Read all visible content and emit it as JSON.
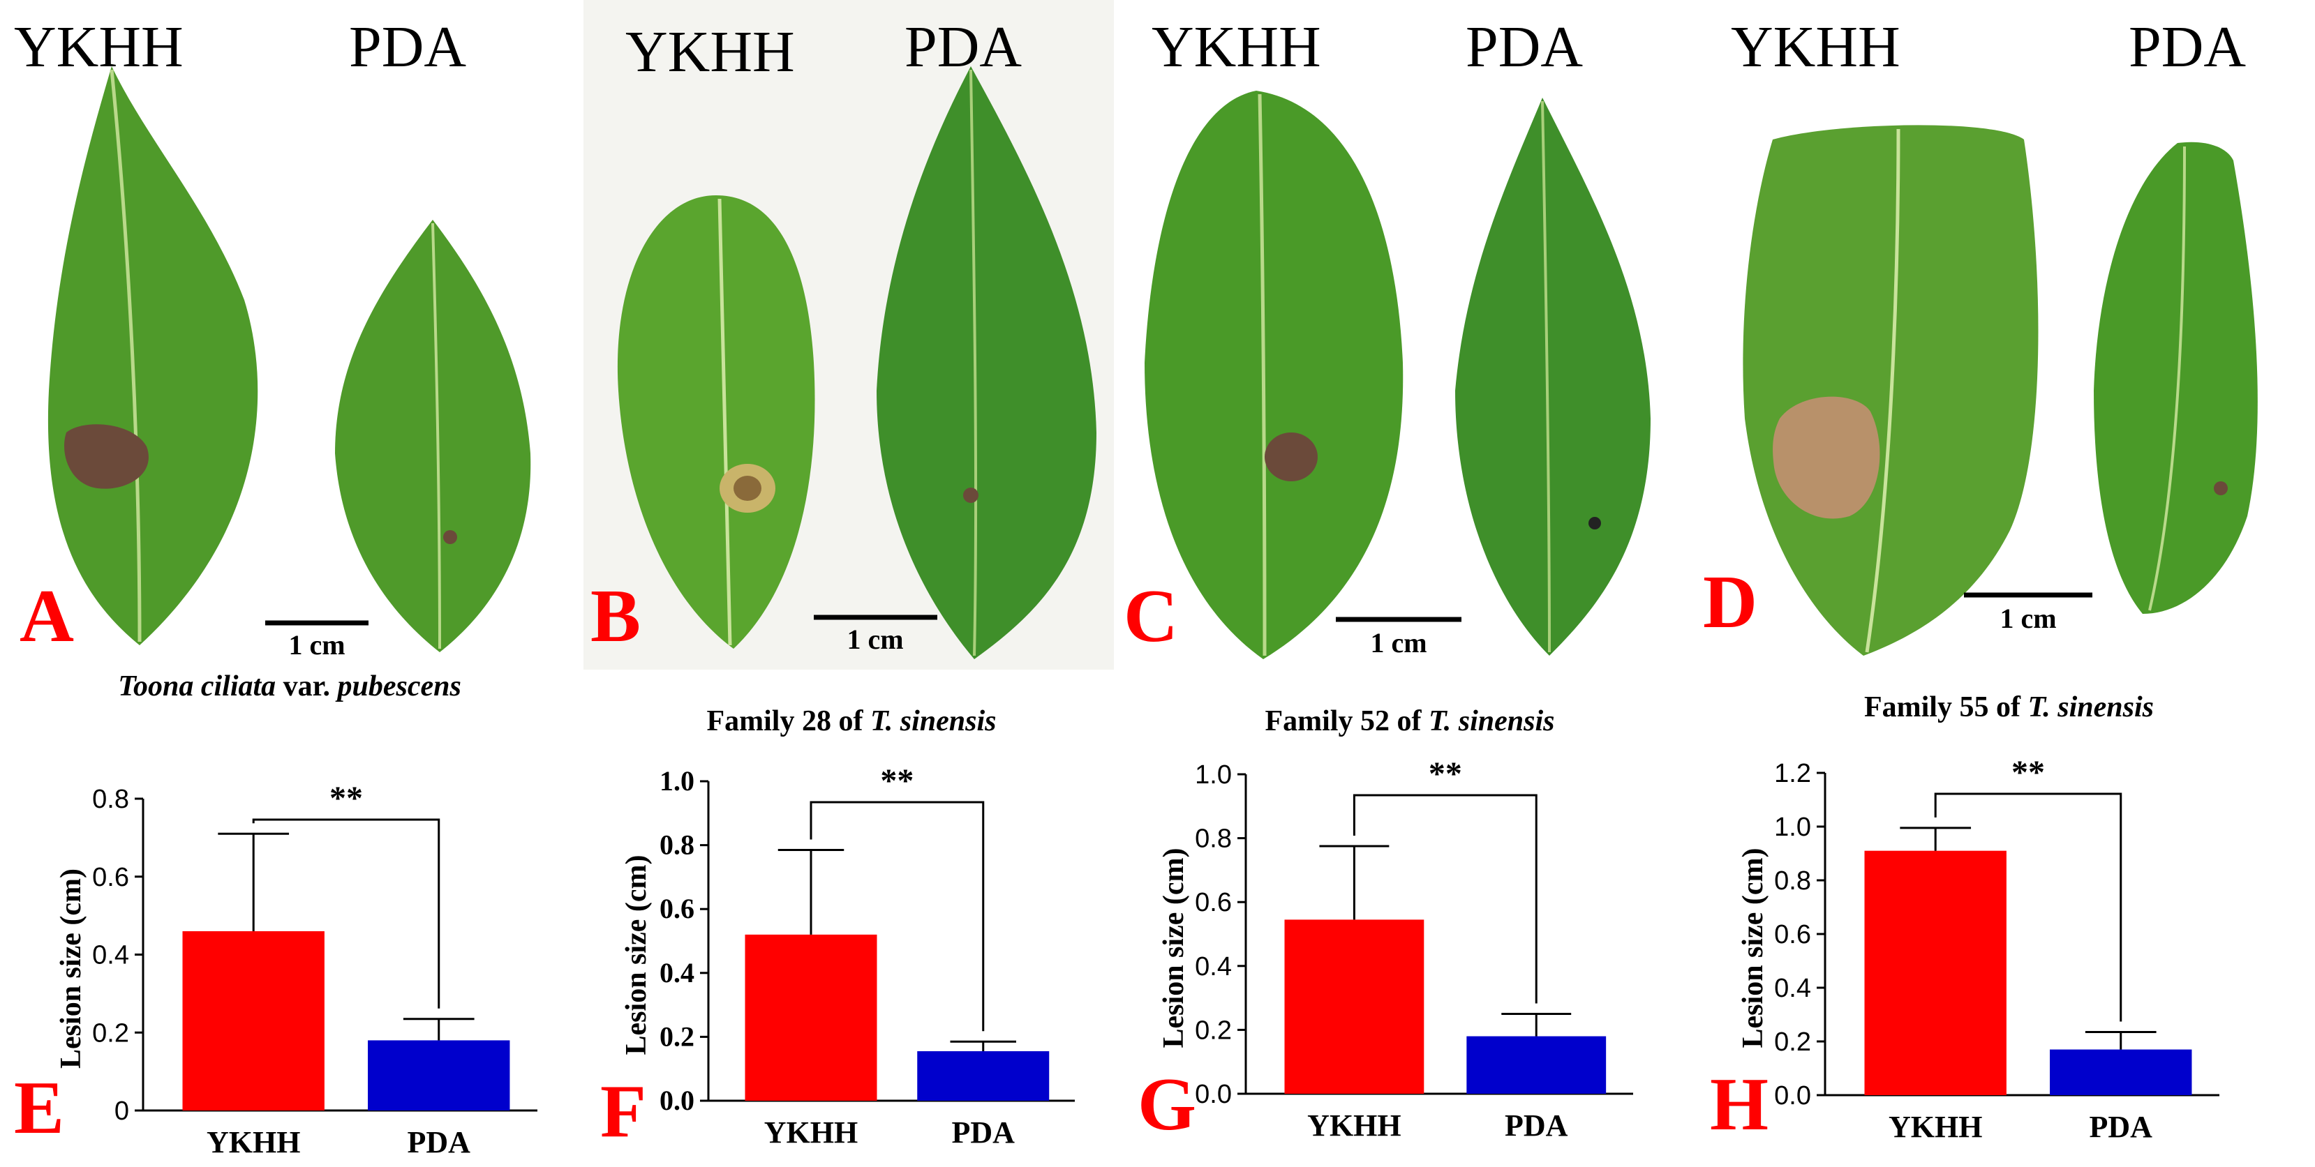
{
  "photo_panels": [
    {
      "letter": "A",
      "left_label": "YKHH",
      "right_label": "PDA",
      "scale_bar": "1 cm"
    },
    {
      "letter": "B",
      "left_label": "YKHH",
      "right_label": "PDA",
      "scale_bar": "1 cm"
    },
    {
      "letter": "C",
      "left_label": "YKHH",
      "right_label": "PDA",
      "scale_bar": "1 cm"
    },
    {
      "letter": "D",
      "left_label": "YKHH",
      "right_label": "PDA",
      "scale_bar": "1 cm"
    }
  ],
  "colors": {
    "ykhh": "#ff0000",
    "pda": "#0000cc",
    "leaf": "#4f9a2a",
    "leaf_dark": "#2f6e1a",
    "lesion": "#6b4a3a",
    "letter": "#ff0000"
  },
  "chart_data": [
    {
      "type": "bar",
      "letter": "E",
      "title_parts": [
        {
          "text": "Toona ciliata",
          "italic": true
        },
        {
          "text": " var. ",
          "italic": false
        },
        {
          "text": "pubescens",
          "italic": true
        }
      ],
      "categories": [
        "YKHH",
        "PDA"
      ],
      "values": [
        0.46,
        0.18
      ],
      "errors": [
        0.25,
        0.055
      ],
      "ylabel": "Lesion size (cm)",
      "ylim": [
        0,
        0.8
      ],
      "yticks": [
        "0",
        "0.2",
        "0.4",
        "0.6",
        "0.8"
      ],
      "significance": "**"
    },
    {
      "type": "bar",
      "letter": "F",
      "title_parts": [
        {
          "text": "Family 28 of ",
          "italic": false
        },
        {
          "text": "T. sinensis",
          "italic": true
        }
      ],
      "categories": [
        "YKHH",
        "PDA"
      ],
      "values": [
        0.52,
        0.155
      ],
      "errors": [
        0.265,
        0.03
      ],
      "ylabel": "Lesion size (cm)",
      "ylim": [
        0,
        1.0
      ],
      "yticks": [
        "0.0",
        "0.2",
        "0.4",
        "0.6",
        "0.8",
        "1.0"
      ],
      "significance": "**"
    },
    {
      "type": "bar",
      "letter": "G",
      "title_parts": [
        {
          "text": "Family 52 of ",
          "italic": false
        },
        {
          "text": "T. sinensis",
          "italic": true
        }
      ],
      "categories": [
        "YKHH",
        "PDA"
      ],
      "values": [
        0.545,
        0.18
      ],
      "errors": [
        0.23,
        0.07
      ],
      "ylabel": "Lesion size (cm)",
      "ylim": [
        0,
        1.0
      ],
      "yticks": [
        "0.0",
        "0.2",
        "0.4",
        "0.6",
        "0.8",
        "1.0"
      ],
      "significance": "**"
    },
    {
      "type": "bar",
      "letter": "H",
      "title_parts": [
        {
          "text": "Family 55 of ",
          "italic": false
        },
        {
          "text": "T. sinensis",
          "italic": true
        }
      ],
      "categories": [
        "YKHH",
        "PDA"
      ],
      "values": [
        0.91,
        0.17
      ],
      "errors": [
        0.085,
        0.065
      ],
      "ylabel": "Lesion size (cm)",
      "ylim": [
        0,
        1.2
      ],
      "yticks": [
        "0.0",
        "0.2",
        "0.4",
        "0.6",
        "0.8",
        "1.0",
        "1.2"
      ],
      "significance": "**"
    }
  ]
}
